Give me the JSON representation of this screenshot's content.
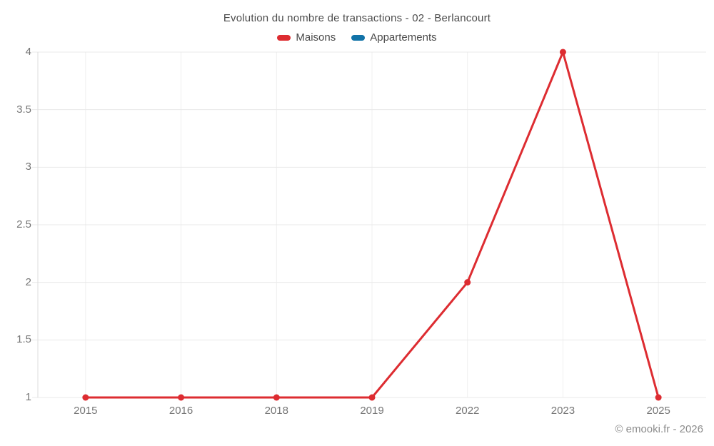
{
  "header": {
    "title": "Evolution du nombre de transactions - 02 - Berlancourt"
  },
  "legend": {
    "position": "top",
    "items": [
      {
        "label": "Maisons",
        "color": "#dd2c31"
      },
      {
        "label": "Appartements",
        "color": "#1273a8"
      }
    ]
  },
  "footer": {
    "copyright": "© emooki.fr - 2026"
  },
  "chart_data": {
    "type": "line",
    "title": "Evolution du nombre de transactions - 02 - Berlancourt",
    "categories": [
      "2015",
      "2016",
      "2018",
      "2019",
      "2022",
      "2023",
      "2025"
    ],
    "series": [
      {
        "name": "Maisons",
        "color": "#dd2c31",
        "values": [
          1,
          1,
          1,
          1,
          2,
          4,
          1
        ]
      },
      {
        "name": "Appartements",
        "color": "#1273a8",
        "values": []
      }
    ],
    "xlabel": "",
    "ylabel": "",
    "ylim": [
      1,
      4
    ],
    "yticks": [
      4,
      3.5,
      3,
      2.5,
      2,
      1.5,
      1
    ],
    "grid": true,
    "legend_position": "top",
    "colors": {
      "grid_horizontal": "#e8e8e8",
      "grid_vertical": "#efefef",
      "axis_line": "#dcdcdc",
      "tick_label": "#757575"
    }
  }
}
